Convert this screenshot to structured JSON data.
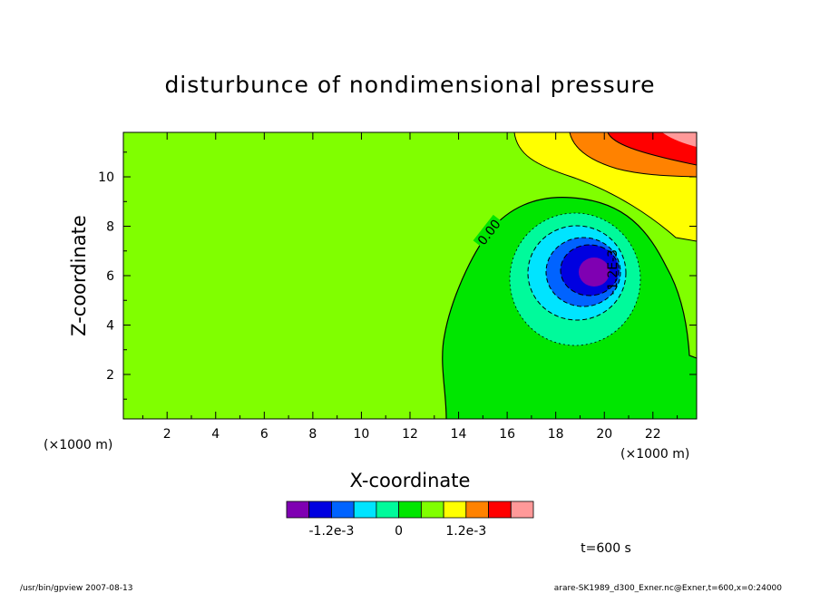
{
  "chart_data": {
    "type": "contour",
    "title": "disturbunce of nondimensional pressure",
    "xlabel": "X-coordinate",
    "ylabel": "Z-coordinate",
    "x_unit": "(×1000 m)",
    "y_unit": "(×1000 m)",
    "xlim": [
      0.2,
      23.8
    ],
    "ylim": [
      0.2,
      11.8
    ],
    "x_ticks": [
      2,
      4,
      6,
      8,
      10,
      12,
      14,
      16,
      18,
      20,
      22
    ],
    "y_ticks": [
      2,
      4,
      6,
      8,
      10
    ],
    "contour_labels": [
      "0.00",
      "-1.2E-3"
    ],
    "colorbar": {
      "colors": [
        "#7f00b2",
        "#0000e0",
        "#0063ff",
        "#00e4ff",
        "#00fa9b",
        "#00e600",
        "#80ff00",
        "#ffff00",
        "#ff8200",
        "#ff0000",
        "#ff9999"
      ],
      "tick_labels": [
        "-1.2e-3",
        "0",
        "1.2e-3"
      ],
      "tick_positions": [
        2,
        5,
        8
      ]
    },
    "time_label": "t=600 s",
    "footer_left": "/usr/bin/gpview   2007-08-13",
    "footer_right": "arare-SK1989_d300_Exner.nc@Exner,t=600,x=0:24000"
  }
}
